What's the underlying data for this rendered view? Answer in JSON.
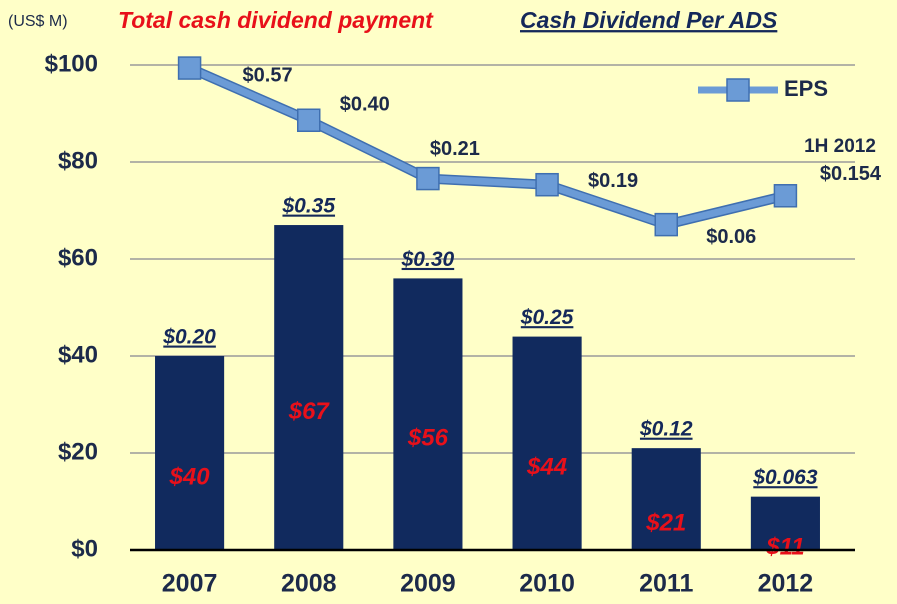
{
  "chart_data": {
    "type": "bar",
    "y_label": "(US$ M)",
    "title": "Total cash dividend payment",
    "subtitle": "Cash Dividend Per ADS",
    "categories": [
      "2007",
      "2008",
      "2009",
      "2010",
      "2011",
      "2012"
    ],
    "values": [
      40,
      67,
      56,
      44,
      21,
      11
    ],
    "value_labels": [
      "$40",
      "$67",
      "$56",
      "$44",
      "$21",
      "$11"
    ],
    "color": "#112a5e",
    "dividend_per_ads": [
      "$0.20",
      "$0.35",
      "$0.30",
      "$0.25",
      "$0.12",
      "$0.063"
    ],
    "ylim": [
      0,
      100
    ],
    "yticks": [
      {
        "value": 0,
        "label": "$0"
      },
      {
        "value": 20,
        "label": "$20"
      },
      {
        "value": 40,
        "label": "$40"
      },
      {
        "value": 60,
        "label": "$60"
      },
      {
        "value": 80,
        "label": "$80"
      },
      {
        "value": 100,
        "label": "$100"
      }
    ],
    "grid": true,
    "y2lim": [
      -1,
      0.58
    ],
    "series": [
      {
        "name": "EPS",
        "color": "#6b9bd6",
        "axis": "y2",
        "type": "line",
        "values": [
          0.57,
          0.4,
          0.21,
          0.19,
          0.06,
          0.154
        ],
        "value_labels": [
          "$0.57",
          "$0.40",
          "$0.21",
          "$0.19",
          "$0.06",
          "$0.154"
        ]
      }
    ],
    "annotation": "1H 2012",
    "legend": "top-right"
  }
}
